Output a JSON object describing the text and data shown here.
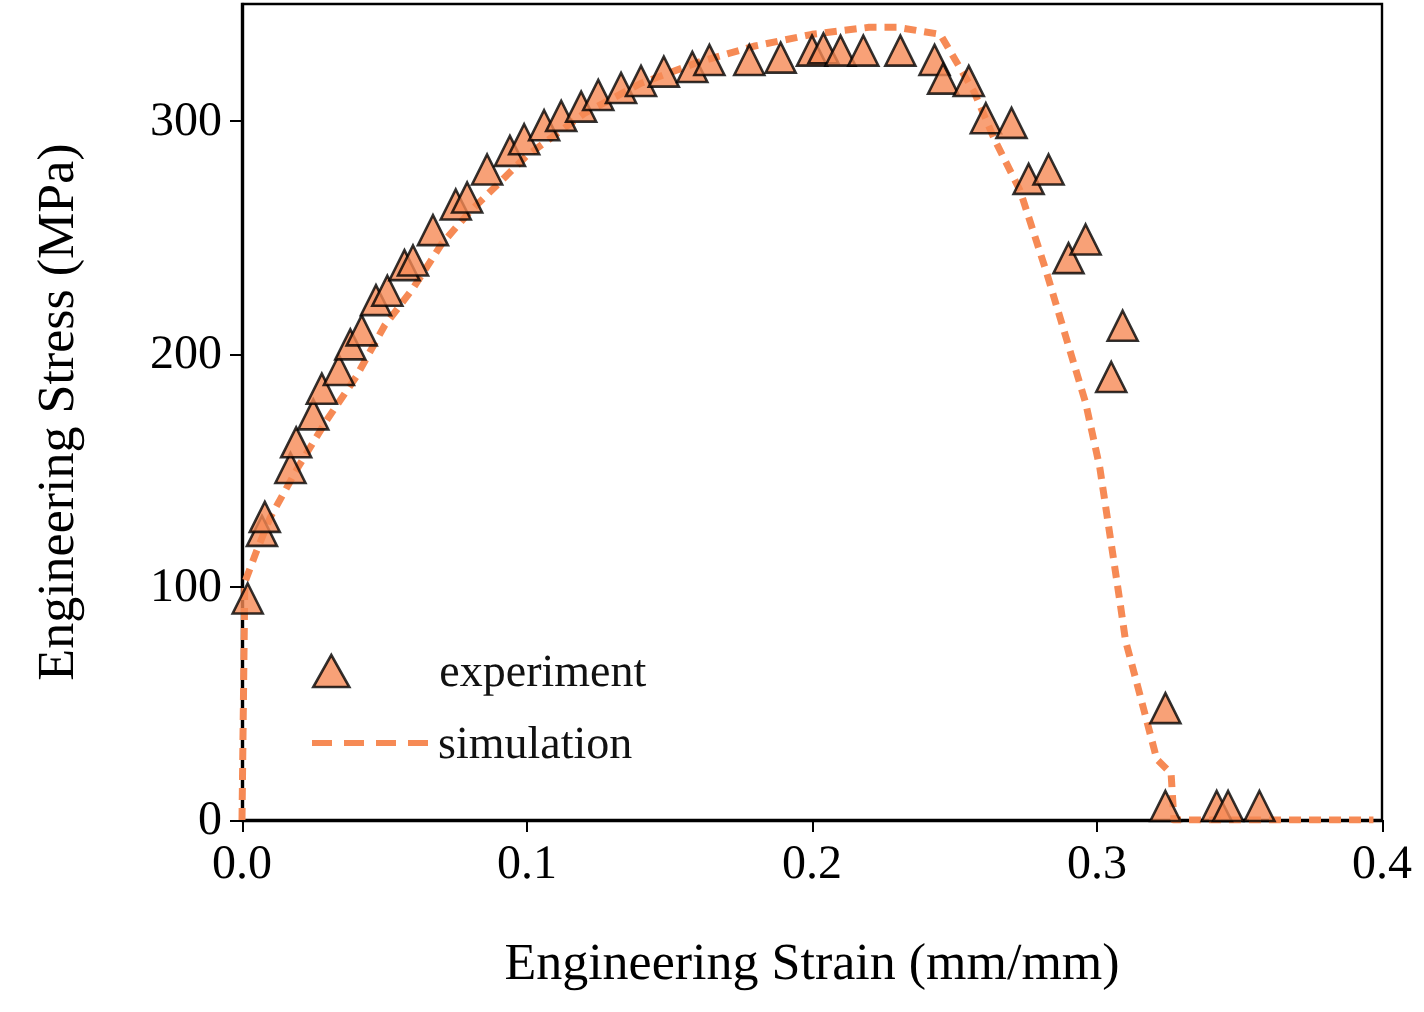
{
  "chart_data": {
    "type": "scatter",
    "xlabel": "Engineering Strain (mm/mm)",
    "ylabel": "Engineering Stress (MPa)",
    "xlim": [
      0,
      0.4
    ],
    "xticks": [
      {
        "value": 0,
        "label": "0.0"
      },
      0.1,
      0.2,
      0.3,
      0.4
    ],
    "ylim": [
      0,
      350
    ],
    "yticks": [
      0,
      100,
      200,
      300
    ],
    "grid": false,
    "legend": "bottom left",
    "series": [
      {
        "name": "experiment",
        "marker": "triangle",
        "color": "#f68a55",
        "x": [
          0.002,
          0.007,
          0.008,
          0.017,
          0.019,
          0.025,
          0.028,
          0.034,
          0.038,
          0.042,
          0.047,
          0.051,
          0.057,
          0.06,
          0.067,
          0.075,
          0.079,
          0.086,
          0.094,
          0.099,
          0.106,
          0.112,
          0.119,
          0.125,
          0.133,
          0.14,
          0.148,
          0.158,
          0.164,
          0.178,
          0.189,
          0.2,
          0.204,
          0.21,
          0.218,
          0.231,
          0.243,
          0.246,
          0.255,
          0.261,
          0.27,
          0.276,
          0.283,
          0.29,
          0.296,
          0.305,
          0.309,
          0.324,
          0.324,
          0.342,
          0.346,
          0.357
        ],
        "values": [
          95,
          124,
          130,
          151,
          162,
          174,
          185,
          193,
          204,
          210,
          223,
          227,
          238,
          240,
          253,
          264,
          267,
          279,
          287,
          292,
          298,
          302,
          306,
          311,
          314,
          317,
          321,
          323,
          326,
          326,
          327,
          330,
          331,
          330,
          330,
          330,
          326,
          318,
          317,
          301,
          299,
          275,
          279,
          241,
          249,
          190,
          212,
          48,
          6,
          6,
          6,
          6
        ]
      },
      {
        "name": "simulation",
        "type": "line",
        "marker": "none",
        "line_style": "dashed",
        "color": "#f68a55",
        "x": [
          0,
          0.001,
          0.005,
          0.01,
          0.02,
          0.03,
          0.04,
          0.05,
          0.06,
          0.07,
          0.08,
          0.1,
          0.12,
          0.14,
          0.16,
          0.18,
          0.2,
          0.22,
          0.23,
          0.245,
          0.257,
          0.264,
          0.273,
          0.282,
          0.296,
          0.301,
          0.308,
          0.31,
          0.315,
          0.321,
          0.326,
          0.327,
          0.34,
          0.397
        ],
        "values": [
          0,
          102,
          115,
          130,
          152,
          172,
          190,
          212,
          228,
          247,
          261,
          285,
          303,
          316,
          325,
          332,
          337,
          340,
          340,
          337,
          312,
          292,
          270,
          236,
          179,
          151,
          94,
          77,
          54,
          26,
          20,
          0,
          0,
          0
        ]
      }
    ]
  }
}
